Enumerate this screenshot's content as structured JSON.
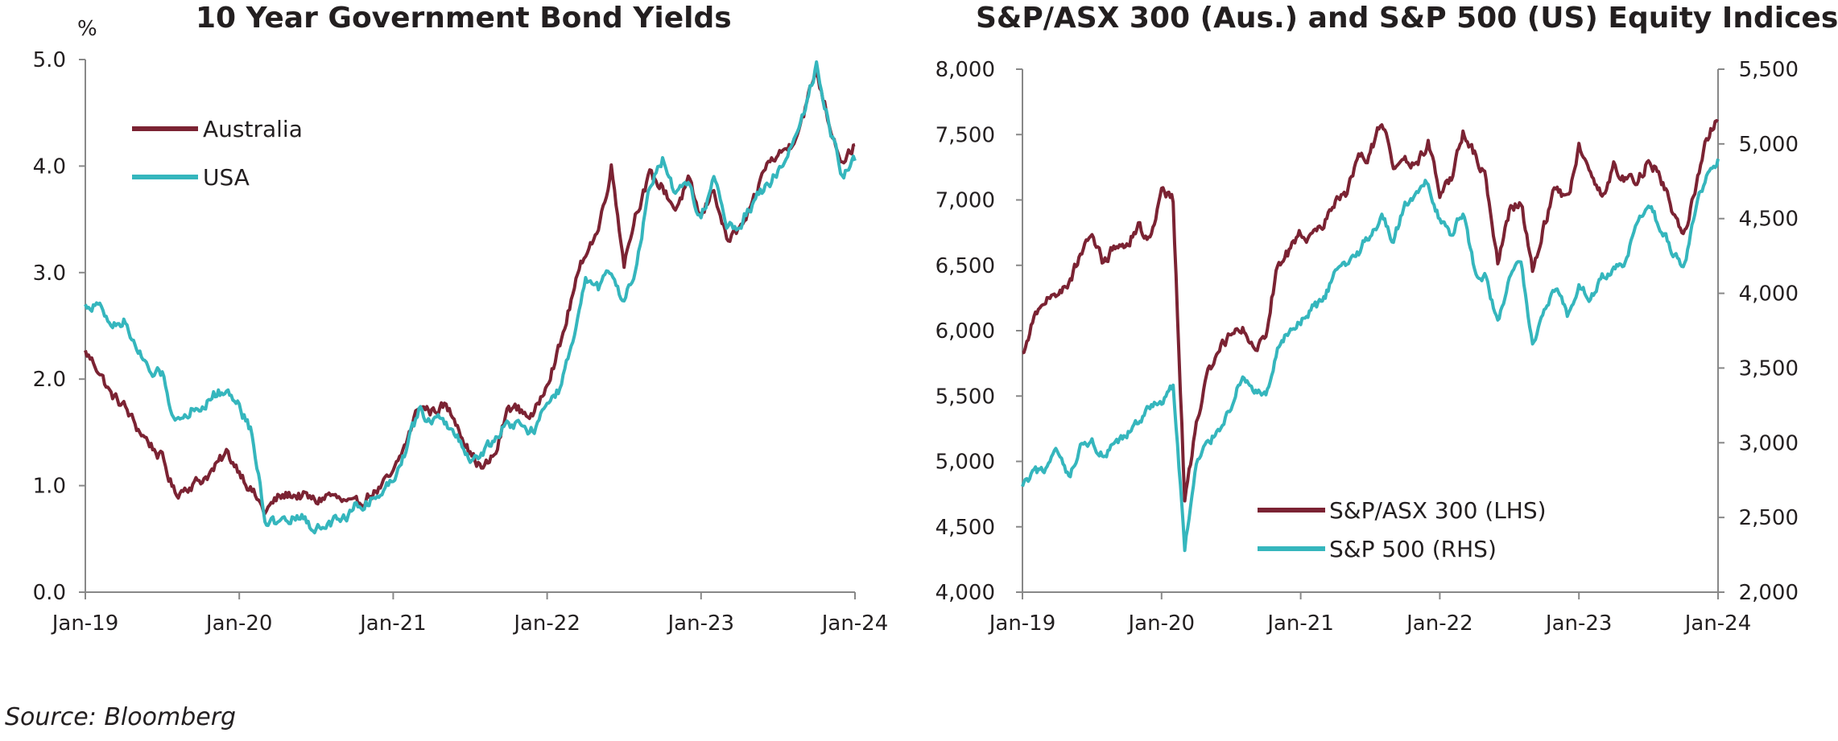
{
  "source": "Source: Bloomberg",
  "colors": {
    "australia": "#7b2333",
    "usa": "#35b6bd",
    "axis": "#888888",
    "text": "#231f20"
  },
  "chart_data": [
    {
      "type": "line",
      "title": "10 Year Government Bond Yields",
      "ylabel": "%",
      "x_range": [
        "2019-01",
        "2024-01"
      ],
      "x_ticks": [
        "Jan-19",
        "Jan-20",
        "Jan-21",
        "Jan-22",
        "Jan-23",
        "Jan-24"
      ],
      "ylim": [
        0,
        5
      ],
      "y_ticks": [
        "0.0",
        "1.0",
        "2.0",
        "3.0",
        "4.0",
        "5.0"
      ],
      "legend_position": "upper-left",
      "grid": false,
      "series": [
        {
          "name": "Australia",
          "color": "#7b2333",
          "points": [
            [
              "2019-01",
              2.25
            ],
            [
              "2019-02",
              2.1
            ],
            [
              "2019-03",
              1.85
            ],
            [
              "2019-04",
              1.75
            ],
            [
              "2019-05",
              1.55
            ],
            [
              "2019-06",
              1.4
            ],
            [
              "2019-07",
              1.25
            ],
            [
              "2019-08",
              0.92
            ],
            [
              "2019-09",
              1.0
            ],
            [
              "2019-10",
              1.05
            ],
            [
              "2019-11",
              1.15
            ],
            [
              "2019-12",
              1.3
            ],
            [
              "2020-01",
              1.15
            ],
            [
              "2020-02",
              0.95
            ],
            [
              "2020-03",
              0.75
            ],
            [
              "2020-04",
              0.88
            ],
            [
              "2020-05",
              0.92
            ],
            [
              "2020-06",
              0.9
            ],
            [
              "2020-07",
              0.85
            ],
            [
              "2020-08",
              0.92
            ],
            [
              "2020-09",
              0.85
            ],
            [
              "2020-10",
              0.8
            ],
            [
              "2020-11",
              0.9
            ],
            [
              "2020-12",
              0.98
            ],
            [
              "2021-01",
              1.1
            ],
            [
              "2021-02",
              1.4
            ],
            [
              "2021-03",
              1.75
            ],
            [
              "2021-04",
              1.7
            ],
            [
              "2021-05",
              1.75
            ],
            [
              "2021-06",
              1.6
            ],
            [
              "2021-07",
              1.3
            ],
            [
              "2021-08",
              1.15
            ],
            [
              "2021-09",
              1.3
            ],
            [
              "2021-10",
              1.75
            ],
            [
              "2021-11",
              1.7
            ],
            [
              "2021-12",
              1.65
            ],
            [
              "2022-01",
              2.0
            ],
            [
              "2022-02",
              2.3
            ],
            [
              "2022-03",
              2.8
            ],
            [
              "2022-04",
              3.2
            ],
            [
              "2022-05",
              3.4
            ],
            [
              "2022-06",
              4.0
            ],
            [
              "2022-07",
              3.1
            ],
            [
              "2022-08",
              3.6
            ],
            [
              "2022-09",
              3.9
            ],
            [
              "2022-10",
              3.8
            ],
            [
              "2022-11",
              3.6
            ],
            [
              "2022-12",
              3.85
            ],
            [
              "2023-01",
              3.5
            ],
            [
              "2023-02",
              3.8
            ],
            [
              "2023-03",
              3.3
            ],
            [
              "2023-04",
              3.4
            ],
            [
              "2023-05",
              3.6
            ],
            [
              "2023-06",
              4.0
            ],
            [
              "2023-07",
              4.1
            ],
            [
              "2023-08",
              4.2
            ],
            [
              "2023-09",
              4.5
            ],
            [
              "2023-10",
              4.9
            ],
            [
              "2023-11",
              4.4
            ],
            [
              "2023-12",
              4.05
            ],
            [
              "2024-01",
              4.2
            ]
          ]
        },
        {
          "name": "USA",
          "color": "#35b6bd",
          "points": [
            [
              "2019-01",
              2.68
            ],
            [
              "2019-02",
              2.7
            ],
            [
              "2019-03",
              2.5
            ],
            [
              "2019-04",
              2.55
            ],
            [
              "2019-05",
              2.3
            ],
            [
              "2019-06",
              2.05
            ],
            [
              "2019-07",
              2.05
            ],
            [
              "2019-08",
              1.6
            ],
            [
              "2019-09",
              1.7
            ],
            [
              "2019-10",
              1.75
            ],
            [
              "2019-11",
              1.85
            ],
            [
              "2019-12",
              1.9
            ],
            [
              "2020-01",
              1.75
            ],
            [
              "2020-02",
              1.5
            ],
            [
              "2020-03",
              0.7
            ],
            [
              "2020-04",
              0.62
            ],
            [
              "2020-05",
              0.68
            ],
            [
              "2020-06",
              0.7
            ],
            [
              "2020-07",
              0.58
            ],
            [
              "2020-08",
              0.65
            ],
            [
              "2020-09",
              0.68
            ],
            [
              "2020-10",
              0.8
            ],
            [
              "2020-11",
              0.85
            ],
            [
              "2020-12",
              0.92
            ],
            [
              "2021-01",
              1.08
            ],
            [
              "2021-02",
              1.35
            ],
            [
              "2021-03",
              1.7
            ],
            [
              "2021-04",
              1.62
            ],
            [
              "2021-05",
              1.6
            ],
            [
              "2021-06",
              1.45
            ],
            [
              "2021-07",
              1.25
            ],
            [
              "2021-08",
              1.3
            ],
            [
              "2021-09",
              1.45
            ],
            [
              "2021-10",
              1.6
            ],
            [
              "2021-11",
              1.55
            ],
            [
              "2021-12",
              1.5
            ],
            [
              "2022-01",
              1.8
            ],
            [
              "2022-02",
              1.9
            ],
            [
              "2022-03",
              2.35
            ],
            [
              "2022-04",
              2.9
            ],
            [
              "2022-05",
              2.85
            ],
            [
              "2022-06",
              3.0
            ],
            [
              "2022-07",
              2.7
            ],
            [
              "2022-08",
              3.1
            ],
            [
              "2022-09",
              3.8
            ],
            [
              "2022-10",
              4.05
            ],
            [
              "2022-11",
              3.7
            ],
            [
              "2022-12",
              3.85
            ],
            [
              "2023-01",
              3.5
            ],
            [
              "2023-02",
              3.9
            ],
            [
              "2023-03",
              3.45
            ],
            [
              "2023-04",
              3.45
            ],
            [
              "2023-05",
              3.65
            ],
            [
              "2023-06",
              3.8
            ],
            [
              "2023-07",
              3.95
            ],
            [
              "2023-08",
              4.2
            ],
            [
              "2023-09",
              4.5
            ],
            [
              "2023-10",
              4.95
            ],
            [
              "2023-11",
              4.4
            ],
            [
              "2023-12",
              3.9
            ],
            [
              "2024-01",
              4.05
            ]
          ]
        }
      ]
    },
    {
      "type": "line",
      "title": "S&P/ASX 300 (Aus.) and S&P 500 (US) Equity Indices",
      "x_range": [
        "2019-01",
        "2024-01"
      ],
      "x_ticks": [
        "Jan-19",
        "Jan-20",
        "Jan-21",
        "Jan-22",
        "Jan-23",
        "Jan-24"
      ],
      "ylim_left": [
        4000,
        8000
      ],
      "y_ticks_left": [
        "4,000",
        "4,500",
        "5,000",
        "5,500",
        "6,000",
        "6,500",
        "7,000",
        "7,500",
        "8,000"
      ],
      "ylim_right": [
        2000,
        5500
      ],
      "y_ticks_right": [
        "2,000",
        "2,500",
        "3,000",
        "3,500",
        "4,000",
        "4,500",
        "5,000",
        "5,500"
      ],
      "legend_position": "lower-right",
      "grid": false,
      "series": [
        {
          "name": "S&P/ASX 300 (LHS)",
          "axis": "left",
          "color": "#7b2333",
          "points": [
            [
              "2019-01",
              5800
            ],
            [
              "2019-02",
              6100
            ],
            [
              "2019-03",
              6200
            ],
            [
              "2019-04",
              6300
            ],
            [
              "2019-05",
              6350
            ],
            [
              "2019-06",
              6600
            ],
            [
              "2019-07",
              6750
            ],
            [
              "2019-08",
              6500
            ],
            [
              "2019-09",
              6650
            ],
            [
              "2019-10",
              6650
            ],
            [
              "2019-11",
              6800
            ],
            [
              "2019-12",
              6700
            ],
            [
              "2020-01",
              7050
            ],
            [
              "2020-02",
              7000
            ],
            [
              "2020-03",
              4700
            ],
            [
              "2020-04",
              5300
            ],
            [
              "2020-05",
              5650
            ],
            [
              "2020-06",
              5850
            ],
            [
              "2020-07",
              6000
            ],
            [
              "2020-08",
              6050
            ],
            [
              "2020-09",
              5850
            ],
            [
              "2020-10",
              6000
            ],
            [
              "2020-11",
              6500
            ],
            [
              "2020-12",
              6600
            ],
            [
              "2021-01",
              6750
            ],
            [
              "2021-02",
              6700
            ],
            [
              "2021-03",
              6800
            ],
            [
              "2021-04",
              7000
            ],
            [
              "2021-05",
              7050
            ],
            [
              "2021-06",
              7300
            ],
            [
              "2021-07",
              7350
            ],
            [
              "2021-08",
              7600
            ],
            [
              "2021-09",
              7250
            ],
            [
              "2021-10",
              7300
            ],
            [
              "2021-11",
              7250
            ],
            [
              "2021-12",
              7450
            ],
            [
              "2022-01",
              7050
            ],
            [
              "2022-02",
              7150
            ],
            [
              "2022-03",
              7500
            ],
            [
              "2022-04",
              7350
            ],
            [
              "2022-05",
              7150
            ],
            [
              "2022-06",
              6550
            ],
            [
              "2022-07",
              6900
            ],
            [
              "2022-08",
              7000
            ],
            [
              "2022-09",
              6450
            ],
            [
              "2022-10",
              6800
            ],
            [
              "2022-11",
              7100
            ],
            [
              "2022-12",
              7000
            ],
            [
              "2023-01",
              7400
            ],
            [
              "2023-02",
              7200
            ],
            [
              "2023-03",
              7050
            ],
            [
              "2023-04",
              7250
            ],
            [
              "2023-05",
              7150
            ],
            [
              "2023-06",
              7150
            ],
            [
              "2023-07",
              7300
            ],
            [
              "2023-08",
              7200
            ],
            [
              "2023-09",
              6950
            ],
            [
              "2023-10",
              6700
            ],
            [
              "2023-11",
              7050
            ],
            [
              "2023-12",
              7500
            ],
            [
              "2024-01",
              7600
            ]
          ]
        },
        {
          "name": "S&P 500 (RHS)",
          "axis": "right",
          "color": "#35b6bd",
          "points": [
            [
              "2019-01",
              2700
            ],
            [
              "2019-02",
              2790
            ],
            [
              "2019-03",
              2830
            ],
            [
              "2019-04",
              2930
            ],
            [
              "2019-05",
              2750
            ],
            [
              "2019-06",
              2950
            ],
            [
              "2019-07",
              3000
            ],
            [
              "2019-08",
              2900
            ],
            [
              "2019-09",
              2980
            ],
            [
              "2019-10",
              3040
            ],
            [
              "2019-11",
              3150
            ],
            [
              "2019-12",
              3230
            ],
            [
              "2020-01",
              3280
            ],
            [
              "2020-02",
              3380
            ],
            [
              "2020-03",
              2300
            ],
            [
              "2020-04",
              2850
            ],
            [
              "2020-05",
              3000
            ],
            [
              "2020-06",
              3100
            ],
            [
              "2020-07",
              3250
            ],
            [
              "2020-08",
              3450
            ],
            [
              "2020-09",
              3350
            ],
            [
              "2020-10",
              3300
            ],
            [
              "2020-11",
              3600
            ],
            [
              "2020-12",
              3750
            ],
            [
              "2021-01",
              3800
            ],
            [
              "2021-02",
              3900
            ],
            [
              "2021-03",
              3950
            ],
            [
              "2021-04",
              4150
            ],
            [
              "2021-05",
              4200
            ],
            [
              "2021-06",
              4280
            ],
            [
              "2021-07",
              4400
            ],
            [
              "2021-08",
              4520
            ],
            [
              "2021-09",
              4350
            ],
            [
              "2021-10",
              4600
            ],
            [
              "2021-11",
              4650
            ],
            [
              "2021-12",
              4750
            ],
            [
              "2022-01",
              4500
            ],
            [
              "2022-02",
              4380
            ],
            [
              "2022-03",
              4550
            ],
            [
              "2022-04",
              4150
            ],
            [
              "2022-05",
              4100
            ],
            [
              "2022-06",
              3800
            ],
            [
              "2022-07",
              4100
            ],
            [
              "2022-08",
              4200
            ],
            [
              "2022-09",
              3650
            ],
            [
              "2022-10",
              3900
            ],
            [
              "2022-11",
              4050
            ],
            [
              "2022-12",
              3850
            ],
            [
              "2023-01",
              4050
            ],
            [
              "2023-02",
              3980
            ],
            [
              "2023-03",
              4100
            ],
            [
              "2023-04",
              4150
            ],
            [
              "2023-05",
              4200
            ],
            [
              "2023-06",
              4450
            ],
            [
              "2023-07",
              4580
            ],
            [
              "2023-08",
              4450
            ],
            [
              "2023-09",
              4300
            ],
            [
              "2023-10",
              4150
            ],
            [
              "2023-11",
              4550
            ],
            [
              "2023-12",
              4770
            ],
            [
              "2024-01",
              4900
            ]
          ]
        }
      ]
    }
  ]
}
